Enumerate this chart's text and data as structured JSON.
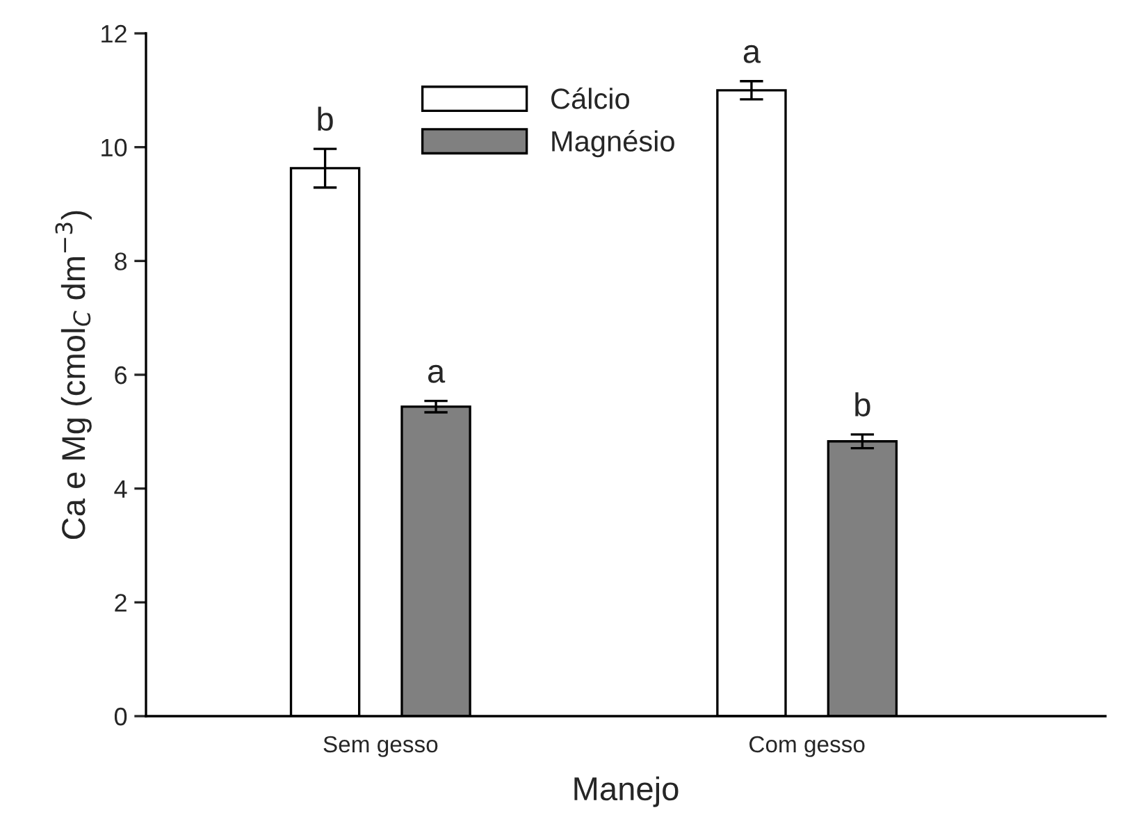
{
  "chart_data": {
    "type": "bar",
    "xlabel": "Manejo",
    "ylabel": "Ca e Mg (cmol$_{C}$ dm$^{−3}$)",
    "categories": [
      "Sem gesso",
      "Com gesso"
    ],
    "series": [
      {
        "name": "Cálcio",
        "color": "#ffffff",
        "values": [
          9.63,
          11.0
        ],
        "errors": [
          0.34,
          0.16
        ],
        "value_labels": [
          "b",
          "a"
        ]
      },
      {
        "name": "Magnésio",
        "color": "#808080",
        "values": [
          5.44,
          4.83
        ],
        "errors": [
          0.1,
          0.12
        ],
        "value_labels": [
          "a",
          "b"
        ]
      }
    ],
    "ylim": [
      0,
      12
    ],
    "yticks": [
      0,
      2,
      4,
      6,
      8,
      10,
      12
    ],
    "grid": false,
    "legend": "top"
  }
}
